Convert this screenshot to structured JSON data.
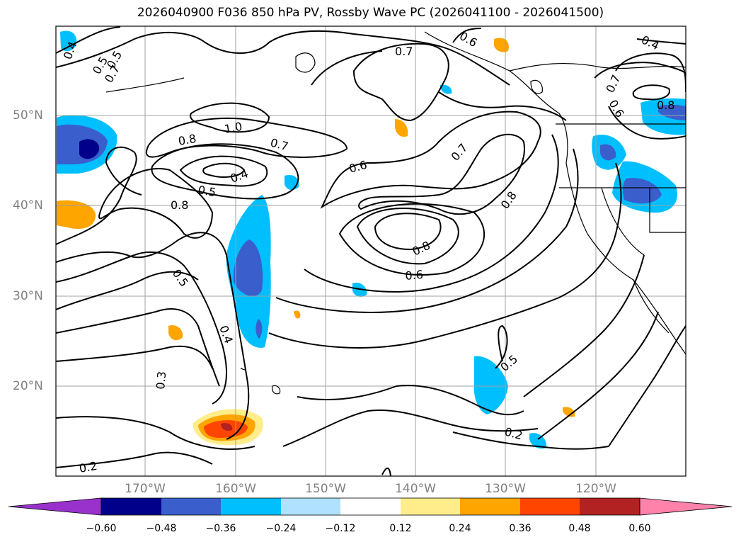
{
  "title": "2026040900 F036 850 hPa PV, Rossby Wave PC (2026041100 - 2026041500)",
  "lat_labels": [
    "50°N",
    "40°N",
    "30°N",
    "20°N"
  ],
  "lon_labels": [
    "170°W",
    "160°W",
    "150°W",
    "140°W",
    "130°W",
    "120°W"
  ],
  "colorbar": {
    "ticks": [
      "−0.60",
      "−0.48",
      "−0.36",
      "−0.24",
      "−0.12",
      "0.12",
      "0.24",
      "0.36",
      "0.48",
      "0.60"
    ],
    "colors": [
      "#9932cc",
      "#00008b",
      "#3a5fcd",
      "#00bfff",
      "#b0e2ff",
      "#ffffff",
      "#ffec8b",
      "#ffa500",
      "#ff4500",
      "#b22222",
      "#ff82ab"
    ]
  },
  "contour_labels": [
    "0.4",
    "0.5",
    "0.6",
    "0.7",
    "0.5",
    "0.7",
    "1.0",
    "0.8",
    "0.7",
    "0.6",
    "0.4",
    "0.5",
    "0.8",
    "0.7",
    "0.8",
    "0.8",
    "0.6",
    "0.5",
    "0.4",
    "0.3",
    "0.5",
    "0.2",
    "0.2",
    "0.4",
    "0.7",
    "0.6",
    "0.8"
  ]
}
